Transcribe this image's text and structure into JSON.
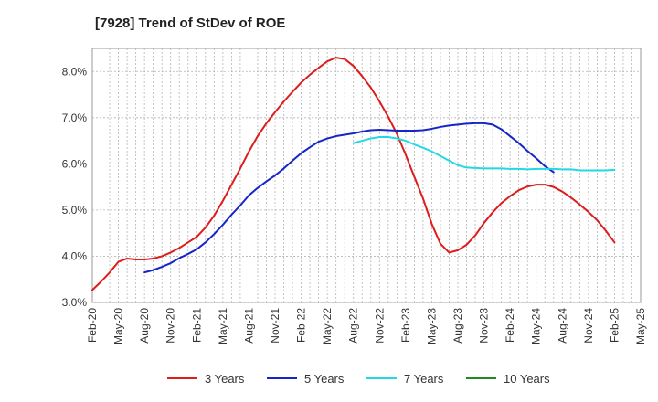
{
  "chart_data": {
    "type": "line",
    "title": "[7928]  Trend of StDev of ROE",
    "xlabel": "",
    "ylabel": "",
    "ylim": [
      3.0,
      8.5
    ],
    "y_ticks": [
      "3.0%",
      "4.0%",
      "5.0%",
      "6.0%",
      "7.0%",
      "8.0%"
    ],
    "y_tick_values": [
      3.0,
      4.0,
      5.0,
      6.0,
      7.0,
      8.0
    ],
    "x_ticks": [
      "Feb-20",
      "May-20",
      "Aug-20",
      "Nov-20",
      "Feb-21",
      "May-21",
      "Aug-21",
      "Nov-21",
      "Feb-22",
      "May-22",
      "Aug-22",
      "Nov-22",
      "Feb-23",
      "May-23",
      "Aug-23",
      "Nov-23",
      "Feb-24",
      "May-24",
      "Aug-24",
      "Nov-24",
      "Feb-25",
      "May-25"
    ],
    "grid": true,
    "legend_position": "bottom",
    "series": [
      {
        "name": "3 Years",
        "color": "#dd1c1c",
        "start_index": 0,
        "values": [
          3.27,
          3.45,
          3.65,
          3.88,
          3.95,
          3.93,
          3.93,
          3.95,
          4.0,
          4.08,
          4.18,
          4.3,
          4.42,
          4.62,
          4.88,
          5.2,
          5.55,
          5.9,
          6.27,
          6.6,
          6.88,
          7.12,
          7.35,
          7.56,
          7.76,
          7.93,
          8.08,
          8.22,
          8.3,
          8.27,
          8.12,
          7.9,
          7.65,
          7.35,
          7.02,
          6.65,
          6.2,
          5.72,
          5.25,
          4.7,
          4.27,
          4.08,
          4.13,
          4.25,
          4.45,
          4.72,
          4.95,
          5.15,
          5.3,
          5.43,
          5.51,
          5.55,
          5.55,
          5.5,
          5.4,
          5.27,
          5.12,
          4.96,
          4.78,
          4.55,
          4.3
        ]
      },
      {
        "name": "5 Years",
        "color": "#1525c8",
        "start_index": 6,
        "values": [
          3.65,
          3.7,
          3.77,
          3.85,
          3.96,
          4.05,
          4.15,
          4.3,
          4.48,
          4.68,
          4.9,
          5.1,
          5.32,
          5.48,
          5.62,
          5.75,
          5.9,
          6.07,
          6.23,
          6.36,
          6.48,
          6.55,
          6.6,
          6.63,
          6.66,
          6.7,
          6.73,
          6.74,
          6.73,
          6.72,
          6.72,
          6.72,
          6.73,
          6.76,
          6.8,
          6.83,
          6.85,
          6.87,
          6.88,
          6.88,
          6.85,
          6.75,
          6.6,
          6.45,
          6.28,
          6.12,
          5.95,
          5.82
        ]
      },
      {
        "name": "7 Years",
        "color": "#22d8e2",
        "start_index": 30,
        "values": [
          6.45,
          6.5,
          6.55,
          6.58,
          6.58,
          6.55,
          6.5,
          6.42,
          6.35,
          6.27,
          6.17,
          6.07,
          5.97,
          5.92,
          5.91,
          5.9,
          5.9,
          5.9,
          5.89,
          5.89,
          5.88,
          5.89,
          5.89,
          5.89,
          5.88,
          5.88,
          5.86,
          5.86,
          5.86,
          5.86,
          5.87
        ]
      },
      {
        "name": "10 Years",
        "color": "#1f8a1f",
        "start_index": 0,
        "values": []
      }
    ]
  }
}
